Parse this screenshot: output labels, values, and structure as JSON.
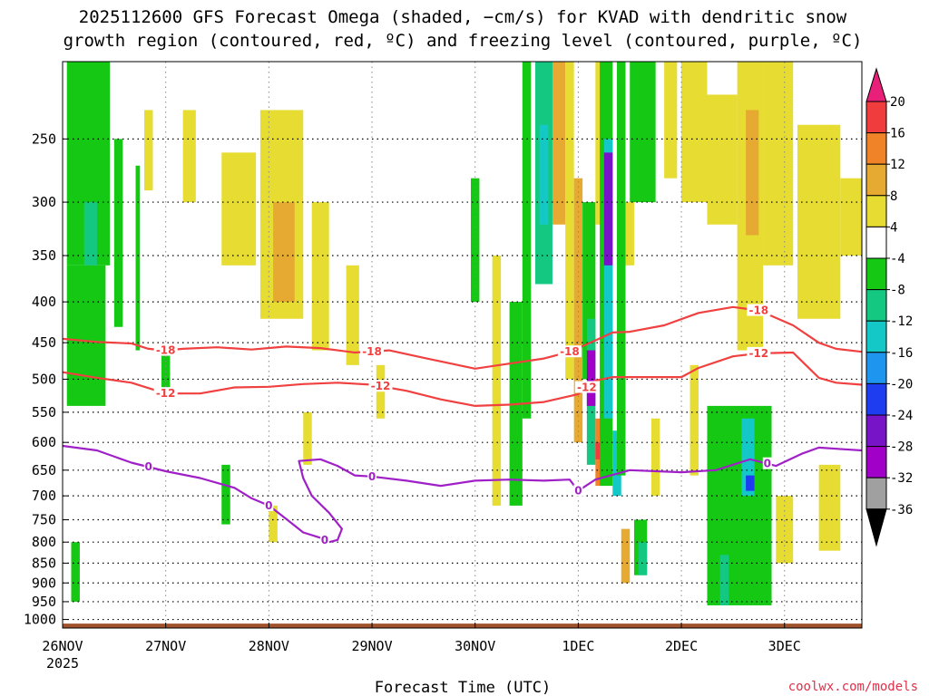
{
  "chart_data": {
    "type": "heatmap",
    "title_lines": [
      "2025112600 GFS Forecast Omega (shaded, −cm/s) for KVAD with dendritic snow",
      "growth region (contoured, red, ºC) and freezing level (contoured, purple, ºC)"
    ],
    "xlabel": "Forecast Time (UTC)",
    "x_ticks": [
      {
        "label": "26NOV",
        "sublabel": "2025",
        "hours": 0
      },
      {
        "label": "27NOV",
        "hours": 24
      },
      {
        "label": "28NOV",
        "hours": 48
      },
      {
        "label": "29NOV",
        "hours": 72
      },
      {
        "label": "30NOV",
        "hours": 96
      },
      {
        "label": "1DEC",
        "hours": 120
      },
      {
        "label": "2DEC",
        "hours": 144
      },
      {
        "label": "3DEC",
        "hours": 168
      }
    ],
    "xlim_hours": [
      0,
      186
    ],
    "ylim_hpa": [
      1025,
      200
    ],
    "y_ticks": [
      250,
      300,
      350,
      400,
      450,
      500,
      550,
      600,
      650,
      700,
      750,
      800,
      850,
      900,
      950,
      1000
    ],
    "grid": "dotted",
    "colorbar": {
      "tick_labels": [
        "20",
        "16",
        "12",
        "8",
        "4",
        "-4",
        "-8",
        "-12",
        "-16",
        "-20",
        "-24",
        "-28",
        "-32",
        "-36"
      ],
      "bins": [
        {
          "lo": 20,
          "hi": 99,
          "color": "#e8207a"
        },
        {
          "lo": 16,
          "hi": 20,
          "color": "#f03c3c"
        },
        {
          "lo": 12,
          "hi": 16,
          "color": "#f08228"
        },
        {
          "lo": 8,
          "hi": 12,
          "color": "#e6aa32"
        },
        {
          "lo": 4,
          "hi": 8,
          "color": "#e6dc32"
        },
        {
          "lo": -4,
          "hi": 4,
          "color": "#ffffff"
        },
        {
          "lo": -8,
          "hi": -4,
          "color": "#14c814"
        },
        {
          "lo": -12,
          "hi": -8,
          "color": "#14c882"
        },
        {
          "lo": -16,
          "hi": -12,
          "color": "#14c8c8"
        },
        {
          "lo": -20,
          "hi": -16,
          "color": "#1e96f0"
        },
        {
          "lo": -24,
          "hi": -20,
          "color": "#1e3cf0"
        },
        {
          "lo": -28,
          "hi": -24,
          "color": "#7814c8"
        },
        {
          "lo": -32,
          "hi": -28,
          "color": "#a000c8"
        },
        {
          "lo": -36,
          "hi": -32,
          "color": "#a0a0a0"
        },
        {
          "lo": -99,
          "hi": -36,
          "color": "#000000"
        }
      ]
    },
    "omega_features": [
      {
        "hours": [
          1,
          11
        ],
        "p": [
          200,
          360
        ],
        "value": -6
      },
      {
        "hours": [
          1,
          10
        ],
        "p": [
          360,
          540
        ],
        "value": -5
      },
      {
        "hours": [
          5,
          8
        ],
        "p": [
          300,
          360
        ],
        "value": -10
      },
      {
        "hours": [
          2,
          4
        ],
        "p": [
          800,
          950
        ],
        "value": -5
      },
      {
        "hours": [
          12,
          14
        ],
        "p": [
          250,
          430
        ],
        "value": -6
      },
      {
        "hours": [
          17,
          18
        ],
        "p": [
          270,
          460
        ],
        "value": -5
      },
      {
        "hours": [
          19,
          21
        ],
        "p": [
          230,
          290
        ],
        "value": 5
      },
      {
        "hours": [
          28,
          31
        ],
        "p": [
          230,
          300
        ],
        "value": 5
      },
      {
        "hours": [
          37,
          45
        ],
        "p": [
          260,
          360
        ],
        "value": 6
      },
      {
        "hours": [
          46,
          56
        ],
        "p": [
          230,
          420
        ],
        "value": 7
      },
      {
        "hours": [
          49,
          54
        ],
        "p": [
          300,
          400
        ],
        "value": 9
      },
      {
        "hours": [
          58,
          62
        ],
        "p": [
          300,
          460
        ],
        "value": 5
      },
      {
        "hours": [
          66,
          69
        ],
        "p": [
          360,
          480
        ],
        "value": 5
      },
      {
        "hours": [
          73,
          75
        ],
        "p": [
          480,
          560
        ],
        "value": 5
      },
      {
        "hours": [
          37,
          39
        ],
        "p": [
          640,
          760
        ],
        "value": -6
      },
      {
        "hours": [
          23,
          25
        ],
        "p": [
          460,
          520
        ],
        "value": -5
      },
      {
        "hours": [
          48,
          50
        ],
        "p": [
          720,
          800
        ],
        "value": 5
      },
      {
        "hours": [
          56,
          58
        ],
        "p": [
          550,
          640
        ],
        "value": 5
      },
      {
        "hours": [
          95,
          97
        ],
        "p": [
          280,
          400
        ],
        "value": -5
      },
      {
        "hours": [
          100,
          102
        ],
        "p": [
          350,
          720
        ],
        "value": 5
      },
      {
        "hours": [
          104,
          107
        ],
        "p": [
          400,
          720
        ],
        "value": -6
      },
      {
        "hours": [
          107,
          109
        ],
        "p": [
          200,
          560
        ],
        "value": -7
      },
      {
        "hours": [
          110,
          114
        ],
        "p": [
          200,
          380
        ],
        "value": -10
      },
      {
        "hours": [
          111,
          113
        ],
        "p": [
          240,
          320
        ],
        "value": -15
      },
      {
        "hours": [
          114,
          117
        ],
        "p": [
          200,
          320
        ],
        "value": 8
      },
      {
        "hours": [
          117,
          119
        ],
        "p": [
          200,
          500
        ],
        "value": 7
      },
      {
        "hours": [
          119,
          121
        ],
        "p": [
          280,
          600
        ],
        "value": 9
      },
      {
        "hours": [
          121,
          124
        ],
        "p": [
          300,
          500
        ],
        "value": -7
      },
      {
        "hours": [
          122,
          124
        ],
        "p": [
          420,
          640
        ],
        "value": -12
      },
      {
        "hours": [
          122,
          124
        ],
        "p": [
          460,
          540
        ],
        "value": -30
      },
      {
        "hours": [
          124,
          127
        ],
        "p": [
          200,
          320
        ],
        "value": 6
      },
      {
        "hours": [
          124,
          127
        ],
        "p": [
          560,
          680
        ],
        "value": 12
      },
      {
        "hours": [
          124,
          126
        ],
        "p": [
          600,
          630
        ],
        "value": 18
      },
      {
        "hours": [
          125,
          128
        ],
        "p": [
          200,
          680
        ],
        "value": -8
      },
      {
        "hours": [
          126,
          128
        ],
        "p": [
          250,
          560
        ],
        "value": -16
      },
      {
        "hours": [
          126,
          128
        ],
        "p": [
          260,
          360
        ],
        "value": -26
      },
      {
        "hours": [
          128,
          130
        ],
        "p": [
          580,
          700
        ],
        "value": -16
      },
      {
        "hours": [
          129,
          131
        ],
        "p": [
          200,
          660
        ],
        "value": -8
      },
      {
        "hours": [
          130,
          132
        ],
        "p": [
          770,
          900
        ],
        "value": 10
      },
      {
        "hours": [
          131,
          133
        ],
        "p": [
          300,
          360
        ],
        "value": 5
      },
      {
        "hours": [
          132,
          138
        ],
        "p": [
          200,
          300
        ],
        "value": -6
      },
      {
        "hours": [
          133,
          136
        ],
        "p": [
          750,
          880
        ],
        "value": -6
      },
      {
        "hours": [
          134,
          136
        ],
        "p": [
          800,
          880
        ],
        "value": -12
      },
      {
        "hours": [
          140,
          143
        ],
        "p": [
          200,
          280
        ],
        "value": 5
      },
      {
        "hours": [
          144,
          150
        ],
        "p": [
          200,
          300
        ],
        "value": 5
      },
      {
        "hours": [
          150,
          157
        ],
        "p": [
          220,
          320
        ],
        "value": 6
      },
      {
        "hours": [
          157,
          163
        ],
        "p": [
          200,
          460
        ],
        "value": 7
      },
      {
        "hours": [
          159,
          162
        ],
        "p": [
          230,
          330
        ],
        "value": 10
      },
      {
        "hours": [
          163,
          170
        ],
        "p": [
          200,
          360
        ],
        "value": 5
      },
      {
        "hours": [
          171,
          181
        ],
        "p": [
          240,
          420
        ],
        "value": 5
      },
      {
        "hours": [
          181,
          186
        ],
        "p": [
          280,
          350
        ],
        "value": 5
      },
      {
        "hours": [
          150,
          165
        ],
        "p": [
          540,
          960
        ],
        "value": -6
      },
      {
        "hours": [
          158,
          161
        ],
        "p": [
          560,
          700
        ],
        "value": -14
      },
      {
        "hours": [
          159,
          161
        ],
        "p": [
          660,
          690
        ],
        "value": -22
      },
      {
        "hours": [
          153,
          155
        ],
        "p": [
          830,
          960
        ],
        "value": -12
      },
      {
        "hours": [
          166,
          170
        ],
        "p": [
          700,
          850
        ],
        "value": 5
      },
      {
        "hours": [
          176,
          181
        ],
        "p": [
          640,
          820
        ],
        "value": 5
      },
      {
        "hours": [
          146,
          148
        ],
        "p": [
          480,
          660
        ],
        "value": 5
      },
      {
        "hours": [
          137,
          139
        ],
        "p": [
          560,
          700
        ],
        "value": 5
      }
    ],
    "contour_series": [
      {
        "name": "-18 ºC",
        "color": "#f04040",
        "label": "-18",
        "label_hours": [
          24,
          72,
          118,
          162
        ],
        "points": [
          [
            0,
            445
          ],
          [
            8,
            449
          ],
          [
            16,
            451
          ],
          [
            20,
            458
          ],
          [
            24,
            460
          ],
          [
            28,
            458
          ],
          [
            36,
            456
          ],
          [
            44,
            459
          ],
          [
            52,
            455
          ],
          [
            60,
            457
          ],
          [
            68,
            463
          ],
          [
            76,
            460
          ],
          [
            84,
            470
          ],
          [
            92,
            480
          ],
          [
            96,
            485
          ],
          [
            104,
            478
          ],
          [
            112,
            471
          ],
          [
            118,
            462
          ],
          [
            124,
            447
          ],
          [
            128,
            437
          ],
          [
            132,
            436
          ],
          [
            140,
            428
          ],
          [
            148,
            413
          ],
          [
            156,
            406
          ],
          [
            162,
            410
          ],
          [
            170,
            428
          ],
          [
            176,
            450
          ],
          [
            180,
            458
          ],
          [
            186,
            462
          ]
        ]
      },
      {
        "name": "-12 ºC",
        "color": "#f04040",
        "label": "-12",
        "label_hours": [
          24,
          74,
          122,
          162
        ],
        "points": [
          [
            0,
            490
          ],
          [
            8,
            498
          ],
          [
            16,
            505
          ],
          [
            24,
            521
          ],
          [
            32,
            521
          ],
          [
            40,
            512
          ],
          [
            48,
            511
          ],
          [
            56,
            507
          ],
          [
            64,
            505
          ],
          [
            72,
            508
          ],
          [
            80,
            517
          ],
          [
            88,
            530
          ],
          [
            96,
            540
          ],
          [
            104,
            538
          ],
          [
            112,
            534
          ],
          [
            120,
            522
          ],
          [
            124,
            502
          ],
          [
            128,
            497
          ],
          [
            136,
            497
          ],
          [
            144,
            497
          ],
          [
            148,
            484
          ],
          [
            156,
            468
          ],
          [
            162,
            464
          ],
          [
            170,
            463
          ],
          [
            176,
            498
          ],
          [
            180,
            505
          ],
          [
            186,
            508
          ]
        ]
      },
      {
        "name": "0 ºC (freezing level)",
        "color": "#a020c8",
        "label": "0",
        "label_hours": [
          20,
          48,
          61,
          72,
          120,
          164
        ],
        "points": [
          [
            0,
            606
          ],
          [
            8,
            614
          ],
          [
            16,
            636
          ],
          [
            24,
            652
          ],
          [
            32,
            665
          ],
          [
            40,
            684
          ],
          [
            44,
            705
          ],
          [
            48,
            720
          ],
          [
            52,
            748
          ],
          [
            56,
            778
          ],
          [
            60,
            790
          ],
          [
            62,
            800
          ],
          [
            64,
            795
          ],
          [
            65,
            770
          ],
          [
            62,
            735
          ],
          [
            58,
            700
          ],
          [
            56,
            665
          ],
          [
            55,
            633
          ],
          [
            60,
            630
          ],
          [
            64,
            642
          ],
          [
            68,
            660
          ],
          [
            72,
            662
          ],
          [
            80,
            670
          ],
          [
            88,
            680
          ],
          [
            96,
            670
          ],
          [
            104,
            668
          ],
          [
            112,
            670
          ],
          [
            118,
            668
          ],
          [
            120,
            690
          ],
          [
            124,
            668
          ],
          [
            132,
            650
          ],
          [
            144,
            654
          ],
          [
            152,
            650
          ],
          [
            160,
            630
          ],
          [
            166,
            642
          ],
          [
            172,
            620
          ],
          [
            176,
            609
          ],
          [
            182,
            612
          ],
          [
            186,
            614
          ]
        ]
      }
    ],
    "surface_color": "#a0522d"
  },
  "credit": "coolwx.com/models"
}
